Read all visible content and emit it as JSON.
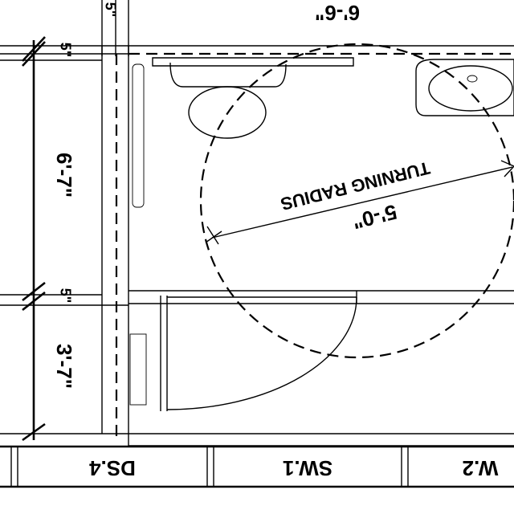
{
  "dimensions": {
    "top_width": "6'-6\"",
    "top_wall_stub": "5\"",
    "left_wall_a": "5\"",
    "left_room_depth": "6'-7\"",
    "left_wall_b": "5\"",
    "left_closet_depth": "3'-7\""
  },
  "turning_circle": {
    "label": "TURNING RADIUS",
    "diameter": "5'-0\""
  },
  "schedule_cells": [
    "DS.4",
    "SW.1",
    "W.2"
  ]
}
